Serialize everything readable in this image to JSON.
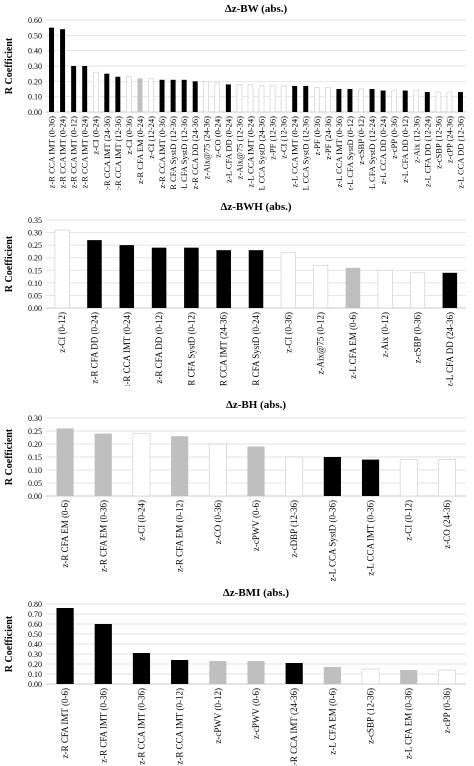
{
  "chart_data": [
    {
      "type": "bar",
      "title": "Δz-BW (abs.)",
      "ylabel": "R Coefficient",
      "ylim": [
        0,
        0.6
      ],
      "yticks": [
        "0.00",
        "0.10",
        "0.20",
        "0.30",
        "0.40",
        "0.50",
        "0.60"
      ],
      "grid": true,
      "categories": [
        "z-R CCA IMT (0-36)",
        "z-R CCA IMT (0-24)",
        "z-R CCA IMT (0-12)",
        "z-R CCA IMT (0-24)",
        "z-CI (0-24)",
        "z-R CCA IMT (24-36)",
        "z-R CCA IMT (12-36)",
        "z-CI (0-36)",
        "z-R CFA EM (0-24)",
        "z-CI (12-24)",
        "z-R CCA IMT (0-36)",
        "z-R CFA SystD (12-36)",
        "z-L CFA SystD (12-36)",
        "z-R CCA DD (24-36)",
        "z-Aix@75 (24-36)",
        "z-CO (0-24)",
        "z-L CFA DD (0-24)",
        "z-Aix@75 (12-36)",
        "z-L CCA IMT (0-24)",
        "z-L CCA SystD (24-36)",
        "z-PF (12-36)",
        "z-CI (12-36)",
        "z-L CCA IMT (0-24)",
        "z-L CCA SystD (12-36)",
        "z-PF (0-36)",
        "z-PF (24-36)",
        "z-L CCA IMT (0-36)",
        "z-L CFA SystD (0-12)",
        "z-cSBP (0-12)",
        "z-L CFA SystD (12-24)",
        "z-L CCA DD (0-24)",
        "z-cPP (0-36)",
        "z-L CFA DD (0-12)",
        "z-Aix (12-36)",
        "z-L CFA DD (12-24)",
        "z-cSBP (12-36)",
        "z-cPP (24-36)",
        "z-L CCA DD (12-36)"
      ],
      "values": [
        0.55,
        0.54,
        0.3,
        0.3,
        0.26,
        0.25,
        0.23,
        0.23,
        0.22,
        0.22,
        0.21,
        0.21,
        0.21,
        0.2,
        0.2,
        0.19,
        0.18,
        0.18,
        0.18,
        0.17,
        0.17,
        0.17,
        0.17,
        0.17,
        0.16,
        0.16,
        0.15,
        0.15,
        0.15,
        0.15,
        0.14,
        0.14,
        0.14,
        0.14,
        0.13,
        0.13,
        0.13,
        0.13
      ],
      "fills": [
        "black",
        "black",
        "black",
        "black",
        "white",
        "black",
        "black",
        "white",
        "gray",
        "white",
        "black",
        "black",
        "black",
        "black",
        "white",
        "white",
        "black",
        "white",
        "white",
        "white",
        "white",
        "white",
        "black",
        "black",
        "white",
        "white",
        "black",
        "black",
        "white",
        "black",
        "black",
        "white",
        "black",
        "white",
        "black",
        "white",
        "white",
        "black"
      ]
    },
    {
      "type": "bar",
      "title": "Δz-BWH (abs.)",
      "ylabel": "R Coefficient",
      "ylim": [
        0,
        0.35
      ],
      "yticks": [
        "0.00",
        "0.05",
        "0.10",
        "0.15",
        "0.20",
        "0.25",
        "0.30",
        "0.35"
      ],
      "grid": true,
      "categories": [
        "z-CI (0-12)",
        "z-R CFA DD (0-24)",
        "z-R CCA IMT (0-24)",
        "z-R CFA DD (0-12)",
        "z-R CFA SystD (0-12)",
        "z-R CCA IMT (24-36)",
        "z-R CFA SystD (0-24)",
        "z-CI (0-36)",
        "z-Aix@75 (0-12)",
        "z-L CFA EM (0-6)",
        "z-Aix (0-12)",
        "z-cSBP (0-36)",
        "z-L CFA DD (24-36)"
      ],
      "values": [
        0.31,
        0.27,
        0.25,
        0.24,
        0.24,
        0.23,
        0.23,
        0.22,
        0.17,
        0.16,
        0.15,
        0.14,
        0.14
      ],
      "fills": [
        "white",
        "black",
        "black",
        "black",
        "black",
        "black",
        "black",
        "white",
        "white",
        "gray",
        "white",
        "white",
        "black"
      ]
    },
    {
      "type": "bar",
      "title": "Δz-BH (abs.)",
      "ylabel": "R Coefficient",
      "ylim": [
        0,
        0.3
      ],
      "yticks": [
        "0.00",
        "0.05",
        "0.10",
        "0.15",
        "0.20",
        "0.25",
        "0.30"
      ],
      "grid": true,
      "categories": [
        "z-R CFA EM (0-6)",
        "z-R CFA EM (0-36)",
        "z-CI (0-24)",
        "z-R CFA EM (0-12)",
        "z-CO (0-36)",
        "z-cPWV (0-6)",
        "z-cDBP (12-36)",
        "z-L CCA SystD (0-36)",
        "z-L CCA IMT (0-36)",
        "z-CI (0-12)",
        "z-CO (24-36)"
      ],
      "values": [
        0.26,
        0.24,
        0.24,
        0.23,
        0.2,
        0.19,
        0.15,
        0.15,
        0.14,
        0.14,
        0.14
      ],
      "fills": [
        "gray",
        "gray",
        "white",
        "gray",
        "white",
        "gray",
        "white",
        "black",
        "black",
        "white",
        "white"
      ]
    },
    {
      "type": "bar",
      "title": "Δz-BMI (abs.)",
      "ylabel": "R Coefficient",
      "ylim": [
        0,
        0.8
      ],
      "yticks": [
        "0.00",
        "0.10",
        "0.20",
        "0.30",
        "0.40",
        "0.50",
        "0.60",
        "0.70",
        "0.80"
      ],
      "grid": true,
      "categories": [
        "z-R CFA IMT (0-6)",
        "z-R CFA IMT (0-36)",
        "z-R CCA IMT (0-36)",
        "z-R CCA IMT (0-12)",
        "z-cPWV (0-12)",
        "z-cPWV (0-6)",
        "z-R CCA IMT (24-36)",
        "z-L CFA EM (0-6)",
        "z-cSBP (12-36)",
        "z-L CFA EM (0-36)",
        "z-cPP (0-36)"
      ],
      "values": [
        0.76,
        0.6,
        0.31,
        0.24,
        0.23,
        0.23,
        0.21,
        0.17,
        0.15,
        0.14,
        0.14
      ],
      "fills": [
        "black",
        "black",
        "black",
        "black",
        "gray",
        "gray",
        "black",
        "gray",
        "white",
        "gray",
        "white"
      ]
    }
  ]
}
